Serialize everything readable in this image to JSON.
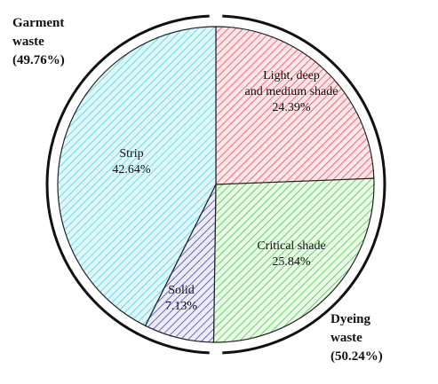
{
  "chart_data": {
    "type": "pie",
    "title": "",
    "slices": [
      {
        "label_lines": [
          "Light, deep",
          "and medium shade"
        ],
        "value": 24.39,
        "value_label": "24.39%",
        "color": "#e8475c",
        "fill": "#fde6e8"
      },
      {
        "label_lines": [
          "Critical shade"
        ],
        "value": 25.84,
        "value_label": "25.84%",
        "color": "#4cc24c",
        "fill": "#e8fbe6"
      },
      {
        "label_lines": [
          "Solid"
        ],
        "value": 7.13,
        "value_label": "7.13%",
        "color": "#4a4ab0",
        "fill": "#ececfb"
      },
      {
        "label_lines": [
          "Strip"
        ],
        "value": 42.64,
        "value_label": "42.64%",
        "color": "#55d0de",
        "fill": "#dff8fb"
      }
    ],
    "groups": [
      {
        "label_lines": [
          "Garment",
          "waste",
          "(49.76%)"
        ],
        "value": 49.76,
        "members": [
          "Strip",
          "Solid"
        ]
      },
      {
        "label_lines": [
          "Dyeing",
          "waste",
          "(50.24%)"
        ],
        "value": 50.24,
        "members": [
          "Light, deep and medium shade",
          "Critical shade"
        ]
      }
    ],
    "start_angle": "12 o'clock",
    "direction": "clockwise",
    "pattern": "diagonal hatching",
    "outer_ring": "split ring around the two groups"
  }
}
